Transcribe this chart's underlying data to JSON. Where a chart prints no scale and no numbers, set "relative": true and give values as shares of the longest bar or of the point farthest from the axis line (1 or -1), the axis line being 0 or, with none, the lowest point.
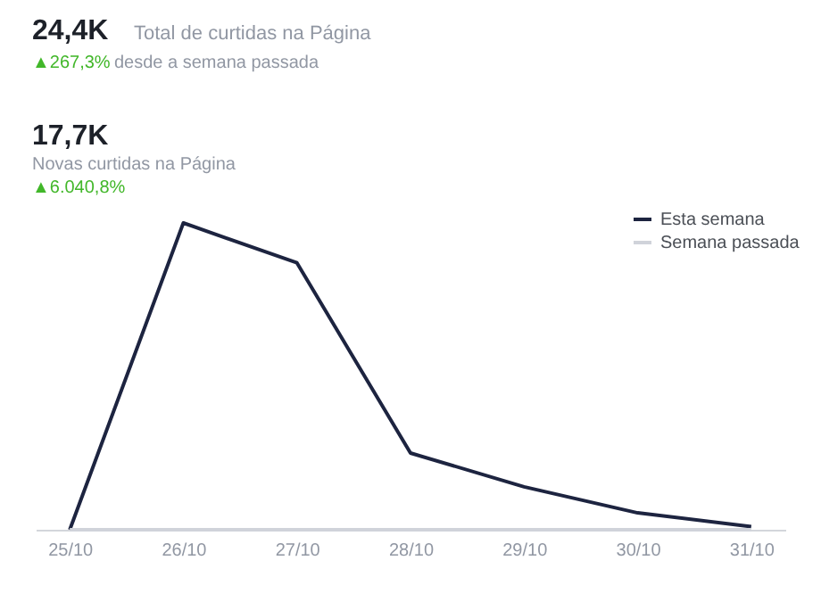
{
  "chart_data": {
    "type": "line",
    "relative": true,
    "categories": [
      "25/10",
      "26/10",
      "27/10",
      "28/10",
      "29/10",
      "30/10",
      "31/10"
    ],
    "series": [
      {
        "name": "Esta semana",
        "color": "#1d2440",
        "values": [
          0,
          1,
          0.87,
          0.25,
          0.14,
          0.055,
          0.01
        ]
      },
      {
        "name": "Semana passada",
        "color": "#d0d3da",
        "values": [
          0,
          0,
          0,
          0,
          0,
          0,
          0
        ]
      }
    ],
    "annotations": [
      "24,4K",
      "Total de curtidas na Página",
      "▲267,3%",
      "desde a semana passada",
      "17,7K",
      "Novas curtidas na Página",
      "▲6.040,8%"
    ],
    "legend": "top right",
    "grid": false,
    "marker": "none",
    "line_style": "solid"
  }
}
